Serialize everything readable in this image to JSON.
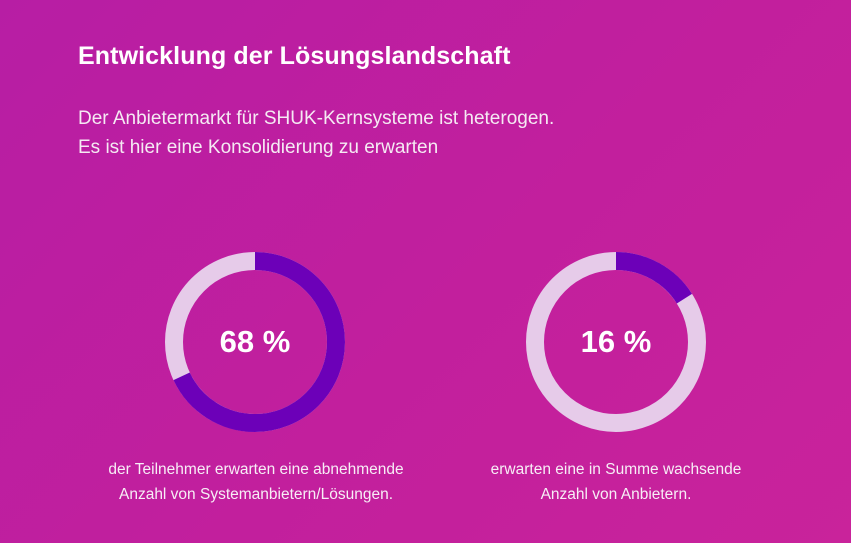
{
  "header": {
    "title": "Entwicklung der Lösungslandschaft",
    "subtitle_line1": "Der Anbietermarkt für SHUK-Kernsysteme ist heterogen.",
    "subtitle_line2": "Es ist hier eine Konsolidierung zu erwarten"
  },
  "colors": {
    "background": "#c01f9f",
    "ring_track": "#e6cbe9",
    "ring_fill": "#6c00b8",
    "text": "#ffffff"
  },
  "chart_data": [
    {
      "type": "pie",
      "variant": "donut",
      "value": 68,
      "max": 100,
      "label": "68 %",
      "caption_line1": "der Teilnehmer erwarten eine abnehmende",
      "caption_line2": "Anzahl von Systemanbietern/Lösungen."
    },
    {
      "type": "pie",
      "variant": "donut",
      "value": 16,
      "max": 100,
      "label": "16 %",
      "caption_line1": "erwarten eine in Summe wachsende",
      "caption_line2": "Anzahl von Anbietern."
    }
  ]
}
